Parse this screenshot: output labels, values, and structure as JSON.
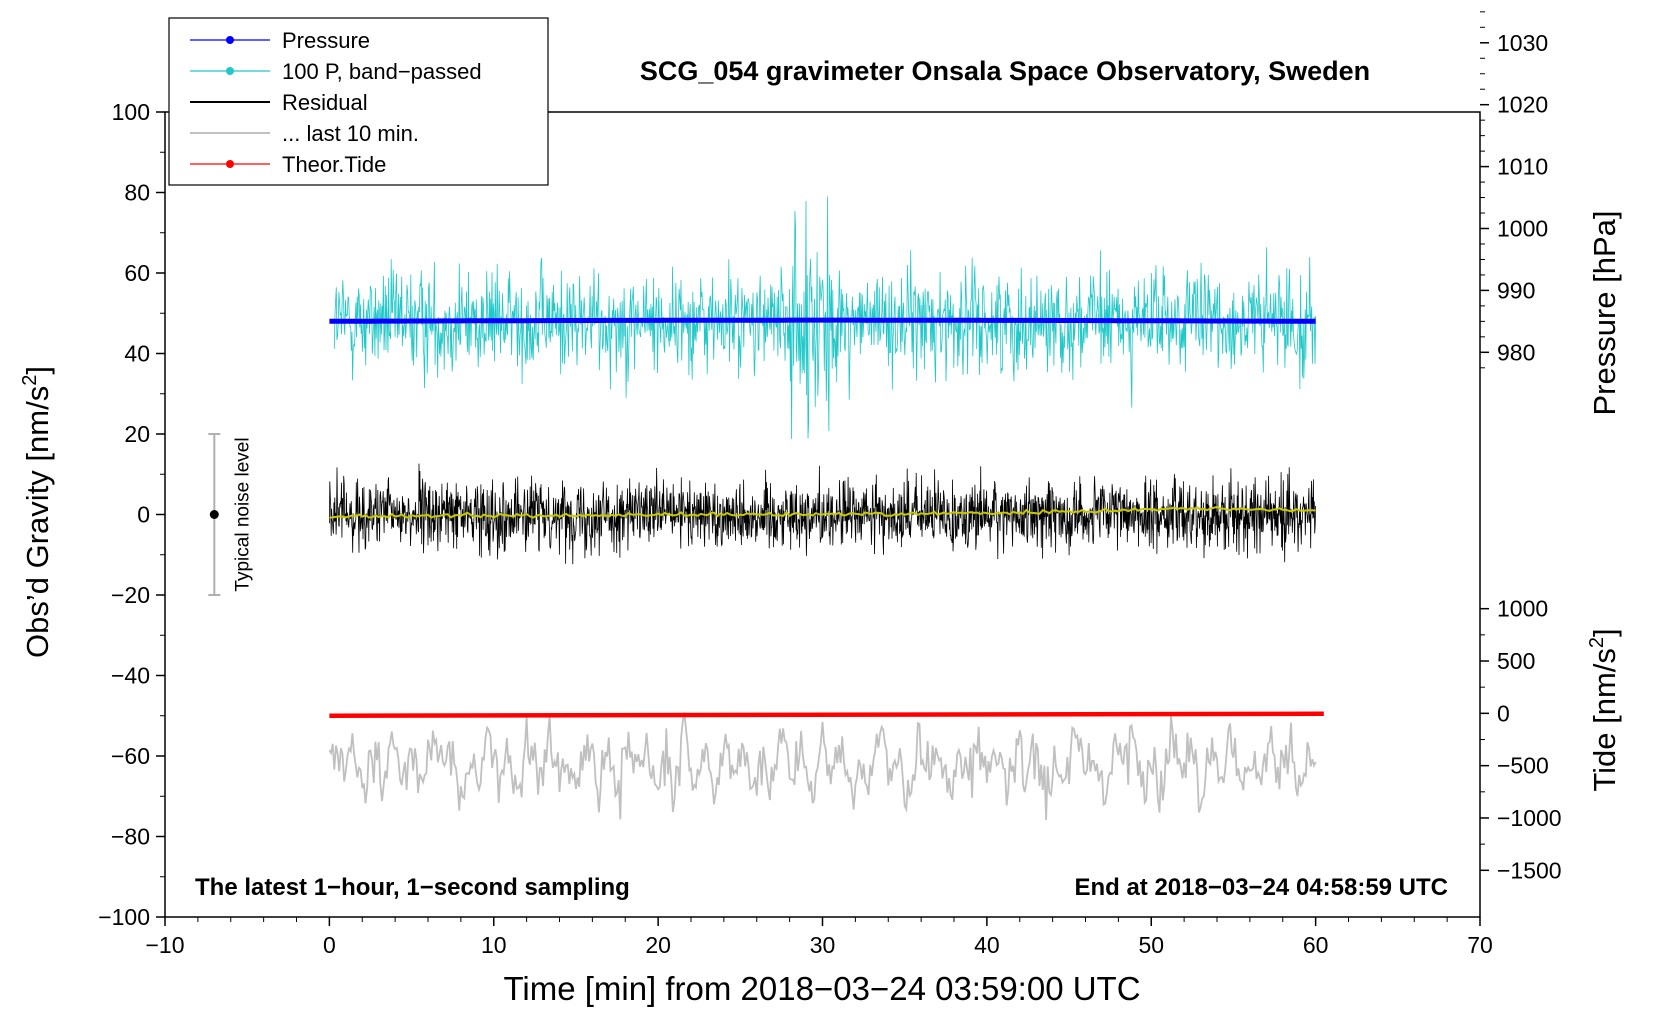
{
  "chart_data": {
    "type": "line",
    "title": "SCG_054 gravimeter Onsala Space Observatory, Sweden",
    "xlabel": "Time [min] from 2018−03−24 03:59:00 UTC",
    "ylabel_left": "Obs’d Gravity [nm/s",
    "ylabel_left_sup": "2",
    "ylabel_left_end": "]",
    "ylabel_pressure": "Pressure [hPa]",
    "ylabel_tide": "Tide [nm/s",
    "ylabel_tide_sup": "2",
    "ylabel_tide_end": "]",
    "xlim": [
      -10,
      70
    ],
    "ylim": [
      -100,
      100
    ],
    "x_ticks": [
      -10,
      0,
      10,
      20,
      30,
      40,
      50,
      60,
      70
    ],
    "x_tick_labels": [
      "−10",
      "0",
      "10",
      "20",
      "30",
      "40",
      "50",
      "60",
      "70"
    ],
    "y_ticks": [
      -100,
      -80,
      -60,
      -40,
      -20,
      0,
      20,
      40,
      60,
      80,
      100
    ],
    "y_tick_labels": [
      "−100",
      "−80",
      "−60",
      "−40",
      "−20",
      "0",
      "20",
      "40",
      "60",
      "80",
      "100"
    ],
    "pressure_axis": {
      "ticks": [
        980,
        990,
        1000,
        1010,
        1020,
        1030
      ],
      "tick_labels": [
        "980",
        "990",
        "1000",
        "1010",
        "1020",
        "1030"
      ],
      "value_at_gravity_0": 953.8,
      "gravity_per_hpa": 1.538
    },
    "tide_axis": {
      "ticks": [
        -1500,
        -1000,
        -500,
        0,
        500,
        1000
      ],
      "tick_labels": [
        "−1500",
        "−1000",
        "−500",
        "0",
        "500",
        "1000"
      ],
      "value_at_gravity_0": 1900,
      "gravity_per_unit": 0.026
    },
    "legend": {
      "position": "top-left",
      "entries": [
        {
          "label": "Pressure",
          "color": "#0000ff",
          "style": "line-dot"
        },
        {
          "label": "100 P, band−passed",
          "color": "#20c8c8",
          "style": "line-dot"
        },
        {
          "label": "Residual",
          "color": "#000000",
          "style": "line"
        },
        {
          "label": "... last 10 min.",
          "color": "#c0c0c0",
          "style": "line"
        },
        {
          "label": "Theor.Tide",
          "color": "#ff0000",
          "style": "line-dot"
        }
      ]
    },
    "noise_bar": {
      "label": "Typical noise level",
      "x": -7,
      "center": 0,
      "low": -20,
      "high": 20
    },
    "annotations": {
      "bottom_left": "The latest 1−hour, 1−second sampling",
      "bottom_right": "End at 2018−03−24 04:58:59 UTC"
    },
    "series": [
      {
        "name": "Pressure",
        "color": "#0000ff",
        "x_range": [
          0,
          60
        ],
        "values_gravity_units": [
          48,
          48.2,
          48.3,
          48.2,
          48
        ]
      },
      {
        "name": "100 P, band−passed",
        "color": "#20c8c8",
        "x_range": [
          0,
          60
        ],
        "center": 48,
        "amplitude_typical": 10,
        "max": 79,
        "min": 16
      },
      {
        "name": "Residual",
        "color": "#000000",
        "x_range": [
          0,
          60
        ],
        "center": 0,
        "amplitude_typical": 8,
        "max": 20,
        "min": -22
      },
      {
        "name": "Residual smoothed",
        "color": "#c8c800",
        "x_range": [
          0,
          60
        ],
        "values": [
          -0.5,
          -0.3,
          -0.2,
          0,
          0.2,
          0.5,
          1.5,
          1
        ]
      },
      {
        "name": "... last 10 min.",
        "color": "#c0c0c0",
        "x_range": [
          0,
          60
        ],
        "center": -62,
        "max": -42,
        "min": -81
      },
      {
        "name": "Theor.Tide",
        "color": "#ff0000",
        "x_range": [
          0,
          60.5
        ],
        "values": [
          -50,
          -49.5
        ]
      }
    ]
  },
  "colors": {
    "axes": "#000000",
    "noise_bar": "#b0b0b0"
  }
}
